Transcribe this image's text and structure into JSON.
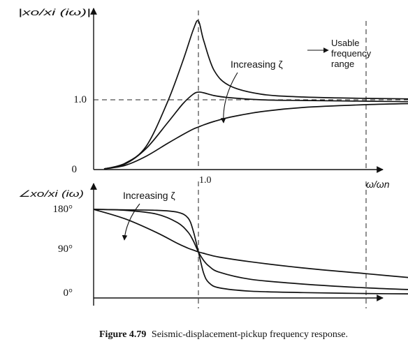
{
  "figure": {
    "caption_number": "Figure 4.79",
    "caption_text": "Seismic-displacement-pickup frequency response."
  },
  "chart_data": [
    {
      "type": "line",
      "ylabel": "|xo/xi (iω)|",
      "xlabel": "ω/ωn",
      "x_tick_labels": [
        "1.0"
      ],
      "y_tick_labels": [
        "0",
        "1.0"
      ],
      "annotations": [
        "Increasing ζ",
        "Usable frequency range"
      ],
      "xlim": [
        0,
        4.2
      ],
      "ylim": [
        0,
        2.3
      ],
      "reference_lines": {
        "x": [
          1.0,
          2.6
        ],
        "y": [
          1.0
        ]
      },
      "series": [
        {
          "x": [
            0.1,
            0.3,
            0.5,
            0.7,
            0.85,
            0.95,
            1.0,
            1.05,
            1.15,
            1.3,
            1.6,
            2.0,
            2.6,
            3.2,
            3.8
          ],
          "y": [
            0.01,
            0.09,
            0.33,
            0.95,
            1.55,
            2.0,
            2.13,
            1.85,
            1.42,
            1.2,
            1.08,
            1.04,
            1.02,
            1.01,
            1.0
          ]
        },
        {
          "x": [
            0.1,
            0.3,
            0.5,
            0.7,
            0.85,
            0.95,
            1.0,
            1.05,
            1.15,
            1.3,
            1.6,
            2.0,
            2.6,
            3.2,
            3.8
          ],
          "y": [
            0.01,
            0.08,
            0.3,
            0.66,
            0.94,
            1.08,
            1.11,
            1.1,
            1.06,
            1.03,
            1.0,
            0.99,
            0.98,
            0.97,
            0.97
          ]
        },
        {
          "x": [
            0.1,
            0.3,
            0.5,
            0.7,
            0.85,
            0.95,
            1.0,
            1.05,
            1.15,
            1.3,
            1.6,
            2.0,
            2.6,
            3.2,
            3.8
          ],
          "y": [
            0.01,
            0.06,
            0.19,
            0.37,
            0.5,
            0.58,
            0.61,
            0.64,
            0.69,
            0.75,
            0.83,
            0.89,
            0.93,
            0.95,
            0.96
          ]
        }
      ]
    },
    {
      "type": "line",
      "ylabel": "∠xo/xi (iω)",
      "x_tick_labels": [],
      "y_tick_labels": [
        "180°",
        "90°",
        "0°"
      ],
      "annotations": [
        "Increasing ζ"
      ],
      "xlim": [
        0,
        4.2
      ],
      "ylim": [
        -10,
        215
      ],
      "reference_lines": {
        "x": [
          1.0,
          2.6
        ]
      },
      "series": [
        {
          "x": [
            0.0,
            0.3,
            0.6,
            0.8,
            0.9,
            0.95,
            1.0,
            1.05,
            1.1,
            1.2,
            1.5,
            2.0,
            2.6,
            3.2,
            3.7
          ],
          "y": [
            180,
            179,
            178,
            174,
            162,
            135,
            90,
            45,
            25,
            14,
            7,
            4,
            2,
            1,
            1
          ]
        },
        {
          "x": [
            0.0,
            0.3,
            0.6,
            0.8,
            0.9,
            0.95,
            1.0,
            1.05,
            1.1,
            1.2,
            1.5,
            2.0,
            2.6,
            3.2,
            3.7
          ],
          "y": [
            180,
            178,
            170,
            152,
            132,
            114,
            90,
            72,
            60,
            47,
            32,
            22,
            14,
            9,
            6
          ]
        },
        {
          "x": [
            0.0,
            0.3,
            0.6,
            0.8,
            0.9,
            0.95,
            1.0,
            1.05,
            1.1,
            1.2,
            1.5,
            2.0,
            2.6,
            3.2,
            3.7
          ],
          "y": [
            180,
            160,
            131,
            108,
            98,
            94,
            90,
            87,
            84,
            79,
            69,
            56,
            44,
            32,
            24
          ]
        }
      ]
    }
  ]
}
